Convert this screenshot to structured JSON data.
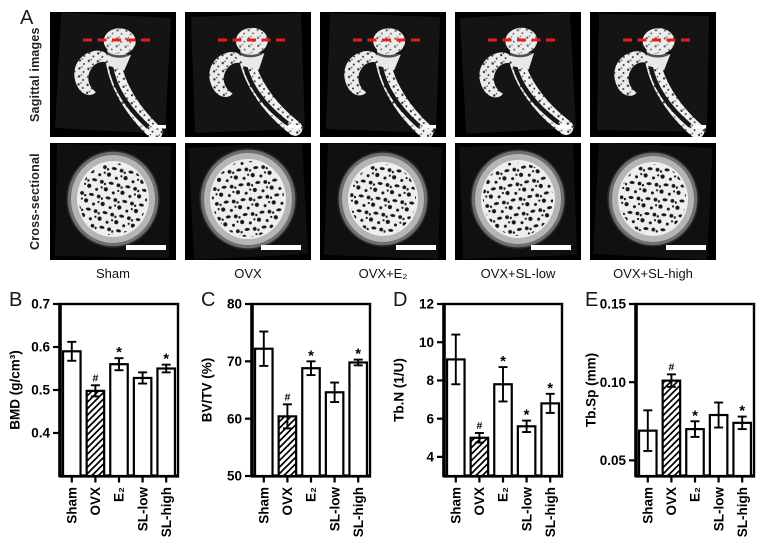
{
  "figure": {
    "panel_a": {
      "letter": "A",
      "row_labels": [
        "Sagittal images",
        "Cross-sectional"
      ],
      "columns": [
        "Sham",
        "OVX",
        "OVX+E₂",
        "OVX+SL-low",
        "OVX+SL-high"
      ],
      "section_line_color": "#e02020"
    }
  },
  "chart_data": [
    {
      "letter": "B",
      "type": "bar",
      "ylabel": "BMD (g/cm³)",
      "ylim": [
        0.3,
        0.7
      ],
      "yticks": [
        0.4,
        0.5,
        0.6,
        0.7
      ],
      "ytick_labels": [
        "0.4",
        "0.5",
        "0.6",
        "0.7"
      ],
      "categories": [
        "Sham",
        "OVX",
        "E₂",
        "SL-low",
        "SL-high"
      ],
      "values": [
        0.59,
        0.498,
        0.56,
        0.528,
        0.55
      ],
      "errors": [
        0.022,
        0.013,
        0.014,
        0.013,
        0.009
      ],
      "markers": [
        "",
        "#",
        "*",
        "",
        "*"
      ],
      "hatched": [
        false,
        true,
        false,
        false,
        false
      ],
      "bar_fill": "#ffffff",
      "bar_edge": "#000000"
    },
    {
      "letter": "C",
      "type": "bar",
      "ylabel": "BV/TV (%)",
      "ylim": [
        50,
        80
      ],
      "yticks": [
        50,
        60,
        70,
        80
      ],
      "ytick_labels": [
        "50",
        "60",
        "70",
        "80"
      ],
      "categories": [
        "Sham",
        "OVX",
        "E₂",
        "SL-low",
        "SL-high"
      ],
      "values": [
        72.2,
        60.4,
        68.8,
        64.6,
        69.8
      ],
      "errors": [
        3.0,
        2.1,
        1.2,
        1.7,
        0.5
      ],
      "markers": [
        "",
        "#",
        "*",
        "",
        "*"
      ],
      "hatched": [
        false,
        true,
        false,
        false,
        false
      ],
      "bar_fill": "#ffffff",
      "bar_edge": "#000000"
    },
    {
      "letter": "D",
      "type": "bar",
      "ylabel": "Tb.N (1/U)",
      "ylim": [
        3,
        12
      ],
      "yticks": [
        4,
        6,
        8,
        10,
        12
      ],
      "ytick_labels": [
        "4",
        "6",
        "8",
        "10",
        "12"
      ],
      "categories": [
        "Sham",
        "OVX",
        "E₂",
        "SL-low",
        "SL-high"
      ],
      "values": [
        9.1,
        5.0,
        7.8,
        5.6,
        6.8
      ],
      "errors": [
        1.3,
        0.25,
        0.9,
        0.3,
        0.5
      ],
      "markers": [
        "",
        "#",
        "*",
        "*",
        "*"
      ],
      "hatched": [
        false,
        true,
        false,
        false,
        false
      ],
      "bar_fill": "#ffffff",
      "bar_edge": "#000000"
    },
    {
      "letter": "E",
      "type": "bar",
      "ylabel": "Tb.Sp (mm)",
      "ylim": [
        0.04,
        0.15
      ],
      "yticks": [
        0.05,
        0.1,
        0.15
      ],
      "ytick_labels": [
        "0.05",
        "0.10",
        "0.15"
      ],
      "categories": [
        "Sham",
        "OVX",
        "E₂",
        "SL-low",
        "SL-high"
      ],
      "values": [
        0.069,
        0.101,
        0.07,
        0.079,
        0.074
      ],
      "errors": [
        0.013,
        0.004,
        0.005,
        0.008,
        0.004
      ],
      "markers": [
        "",
        "#",
        "*",
        "",
        "*"
      ],
      "hatched": [
        false,
        true,
        false,
        false,
        false
      ],
      "bar_fill": "#ffffff",
      "bar_edge": "#000000"
    }
  ]
}
